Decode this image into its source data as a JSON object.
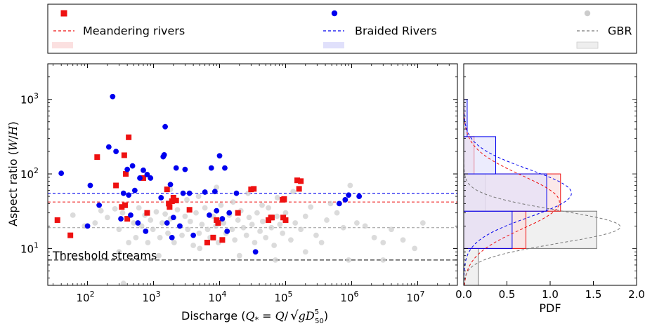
{
  "chart_data": [
    {
      "type": "scatter",
      "xlabel": "Discharge (Q* = Q/√(gD₅₀⁵))",
      "xlabel_parts": {
        "lead": "Discharge (",
        "q": "Q",
        "star": "*",
        "eq": " = ",
        "q2": "Q",
        "slash": "/",
        "rad": "gD",
        "sub": "50",
        "sup": "5",
        "close": ")"
      },
      "ylabel": "Aspect ratio (W/H)",
      "ylabel_parts": {
        "lead": "Aspect ratio (",
        "w": "W",
        "slash": "/",
        "h": "H",
        "close": ")"
      },
      "x_scale": "log",
      "y_scale": "log",
      "xlim": [
        25,
        40000000
      ],
      "ylim": [
        3.2,
        3000
      ],
      "x_ticks": [
        {
          "value": 100,
          "base": "10",
          "exp": "2"
        },
        {
          "value": 1000,
          "base": "10",
          "exp": "3"
        },
        {
          "value": 10000,
          "base": "10",
          "exp": "4"
        },
        {
          "value": 100000,
          "base": "10",
          "exp": "5"
        },
        {
          "value": 1000000,
          "base": "10",
          "exp": "6"
        },
        {
          "value": 10000000,
          "base": "10",
          "exp": "7"
        }
      ],
      "y_ticks": [
        {
          "value": 10,
          "base": "10",
          "exp": "1"
        },
        {
          "value": 100,
          "base": "10",
          "exp": "2"
        },
        {
          "value": 1000,
          "base": "10",
          "exp": "3"
        }
      ],
      "grid": false,
      "legend_position": "above",
      "series": [
        {
          "name": "Meandering rivers",
          "marker": "square",
          "color": "#ee1111",
          "median": 42,
          "points": [
            [
              35,
              24
            ],
            [
              55,
              15
            ],
            [
              140,
              168
            ],
            [
              270,
              70
            ],
            [
              330,
              36
            ],
            [
              360,
              178
            ],
            [
              370,
              38
            ],
            [
              380,
              100
            ],
            [
              400,
              25
            ],
            [
              420,
              310
            ],
            [
              700,
              88
            ],
            [
              800,
              30
            ],
            [
              1600,
              62
            ],
            [
              1700,
              40
            ],
            [
              1750,
              36
            ],
            [
              1900,
              43
            ],
            [
              2000,
              48
            ],
            [
              2200,
              44
            ],
            [
              3500,
              33
            ],
            [
              6500,
              12
            ],
            [
              8000,
              14
            ],
            [
              9000,
              24
            ],
            [
              9500,
              22
            ],
            [
              11000,
              13
            ],
            [
              19000,
              30
            ],
            [
              30000,
              62
            ],
            [
              33000,
              63
            ],
            [
              55000,
              24
            ],
            [
              60000,
              26
            ],
            [
              62000,
              26
            ],
            [
              90000,
              45
            ],
            [
              92000,
              26
            ],
            [
              95000,
              46
            ],
            [
              100000,
              24
            ],
            [
              150000,
              82
            ],
            [
              160000,
              63
            ],
            [
              170000,
              80
            ]
          ]
        },
        {
          "name": "Braided Rivers",
          "marker": "circle",
          "color": "#0000ee",
          "median": 55,
          "points": [
            [
              40,
              102
            ],
            [
              100,
              20
            ],
            [
              110,
              70
            ],
            [
              150,
              38
            ],
            [
              210,
              230
            ],
            [
              240,
              1090
            ],
            [
              270,
              200
            ],
            [
              320,
              25
            ],
            [
              350,
              55
            ],
            [
              400,
              115
            ],
            [
              420,
              52
            ],
            [
              450,
              28
            ],
            [
              480,
              128
            ],
            [
              520,
              60
            ],
            [
              580,
              22
            ],
            [
              620,
              88
            ],
            [
              700,
              112
            ],
            [
              760,
              17
            ],
            [
              800,
              98
            ],
            [
              900,
              88
            ],
            [
              1300,
              48
            ],
            [
              1400,
              170
            ],
            [
              1450,
              180
            ],
            [
              1500,
              430
            ],
            [
              1600,
              22
            ],
            [
              1800,
              72
            ],
            [
              1900,
              14
            ],
            [
              2000,
              26
            ],
            [
              2200,
              120
            ],
            [
              2500,
              20
            ],
            [
              2800,
              55
            ],
            [
              3000,
              115
            ],
            [
              3500,
              55
            ],
            [
              4000,
              15
            ],
            [
              6000,
              57
            ],
            [
              7000,
              28
            ],
            [
              7500,
              120
            ],
            [
              8500,
              58
            ],
            [
              9000,
              32
            ],
            [
              10000,
              175
            ],
            [
              11000,
              25
            ],
            [
              12000,
              120
            ],
            [
              13000,
              17
            ],
            [
              14000,
              30
            ],
            [
              18000,
              55
            ],
            [
              35000,
              9
            ],
            [
              650000,
              40
            ],
            [
              800000,
              45
            ],
            [
              900000,
              52
            ],
            [
              1300000,
              50
            ]
          ]
        },
        {
          "name": "GBR",
          "marker": "circle",
          "color": "#cccccc",
          "median": 19,
          "points": [
            [
              60,
              28
            ],
            [
              90,
              20
            ],
            [
              130,
              22
            ],
            [
              160,
              32
            ],
            [
              200,
              26
            ],
            [
              260,
              34
            ],
            [
              300,
              18
            ],
            [
              340,
              30
            ],
            [
              420,
              12
            ],
            [
              500,
              22
            ],
            [
              540,
              14
            ],
            [
              600,
              35
            ],
            [
              660,
              20
            ],
            [
              740,
              28
            ],
            [
              820,
              12
            ],
            [
              900,
              24
            ],
            [
              980,
              18
            ],
            [
              1100,
              31
            ],
            [
              1250,
              14
            ],
            [
              1350,
              22
            ],
            [
              1500,
              29
            ],
            [
              1650,
              16
            ],
            [
              1800,
              25
            ],
            [
              2050,
              12
            ],
            [
              2300,
              33
            ],
            [
              2500,
              20
            ],
            [
              2700,
              15
            ],
            [
              3000,
              27
            ],
            [
              3300,
              18
            ],
            [
              3600,
              23
            ],
            [
              4000,
              11
            ],
            [
              4400,
              30
            ],
            [
              4900,
              16
            ],
            [
              5400,
              21
            ],
            [
              6000,
              35
            ],
            [
              6600,
              18
            ],
            [
              7200,
              14
            ],
            [
              8000,
              27
            ],
            [
              8800,
              20
            ],
            [
              9600,
              12
            ],
            [
              10500,
              38
            ],
            [
              11500,
              22
            ],
            [
              12500,
              16
            ],
            [
              14000,
              28
            ],
            [
              15500,
              18
            ],
            [
              17000,
              13
            ],
            [
              19000,
              24
            ],
            [
              21000,
              32
            ],
            [
              23000,
              19
            ],
            [
              25500,
              15
            ],
            [
              28000,
              26
            ],
            [
              31000,
              21
            ],
            [
              34000,
              12
            ],
            [
              37000,
              30
            ],
            [
              41000,
              17
            ],
            [
              45000,
              23
            ],
            [
              50000,
              14
            ],
            [
              55000,
              35
            ],
            [
              61000,
              19
            ],
            [
              67000,
              11
            ],
            [
              74000,
              27
            ],
            [
              82000,
              21
            ],
            [
              90000,
              16
            ],
            [
              100000,
              30
            ],
            [
              120000,
              13
            ],
            [
              140000,
              22
            ],
            [
              170000,
              18
            ],
            [
              200000,
              27
            ],
            [
              240000,
              36
            ],
            [
              290000,
              15
            ],
            [
              350000,
              12
            ],
            [
              420000,
              24
            ],
            [
              480000,
              40
            ],
            [
              600000,
              30
            ],
            [
              750000,
              19
            ],
            [
              950000,
              70
            ],
            [
              1200000,
              22
            ],
            [
              1600000,
              20
            ],
            [
              2200000,
              14
            ],
            [
              3000000,
              12
            ],
            [
              4000000,
              18
            ],
            [
              6000000,
              13
            ],
            [
              9000000,
              10
            ],
            [
              12000000,
              22
            ],
            [
              1800,
              62
            ],
            [
              3200,
              45
            ],
            [
              4800,
              50
            ],
            [
              9000,
              66
            ],
            [
              16000,
              42
            ],
            [
              27000,
              55
            ],
            [
              44000,
              38
            ],
            [
              75000,
              48
            ],
            [
              130000,
              58
            ],
            [
              300,
              9
            ],
            [
              1200,
              8
            ],
            [
              5000,
              10
            ],
            [
              20000,
              8
            ],
            [
              70000,
              7
            ],
            [
              200000,
              9
            ],
            [
              900000,
              7
            ],
            [
              3000000,
              7
            ],
            [
              350,
              3.4
            ]
          ]
        }
      ],
      "threshold": {
        "label": "Threshold streams",
        "value": 7
      }
    },
    {
      "type": "histogram",
      "orientation": "horizontal",
      "xlabel": "PDF",
      "xlim": [
        0,
        2.0
      ],
      "x_ticks": [
        "0.0",
        "0.5",
        "1.0",
        "1.5",
        "2.0"
      ],
      "bin_edges_log10": [
        0.5,
        1.0,
        1.5,
        2.0,
        2.5,
        3.0
      ],
      "series": [
        {
          "name": "Meandering rivers",
          "values": [
            0.0,
            0.72,
            1.12,
            0.12,
            0.0
          ],
          "fit_mean_log10": 1.62,
          "fit_sd_log10": 0.36
        },
        {
          "name": "Braided Rivers",
          "values": [
            0.0,
            0.56,
            0.96,
            0.37,
            0.04
          ],
          "fit_mean_log10": 1.74,
          "fit_sd_log10": 0.32
        },
        {
          "name": "GBR",
          "values": [
            0.17,
            1.54,
            0.25,
            0.0,
            0.0
          ],
          "fit_mean_log10": 1.29,
          "fit_sd_log10": 0.22
        }
      ]
    }
  ]
}
